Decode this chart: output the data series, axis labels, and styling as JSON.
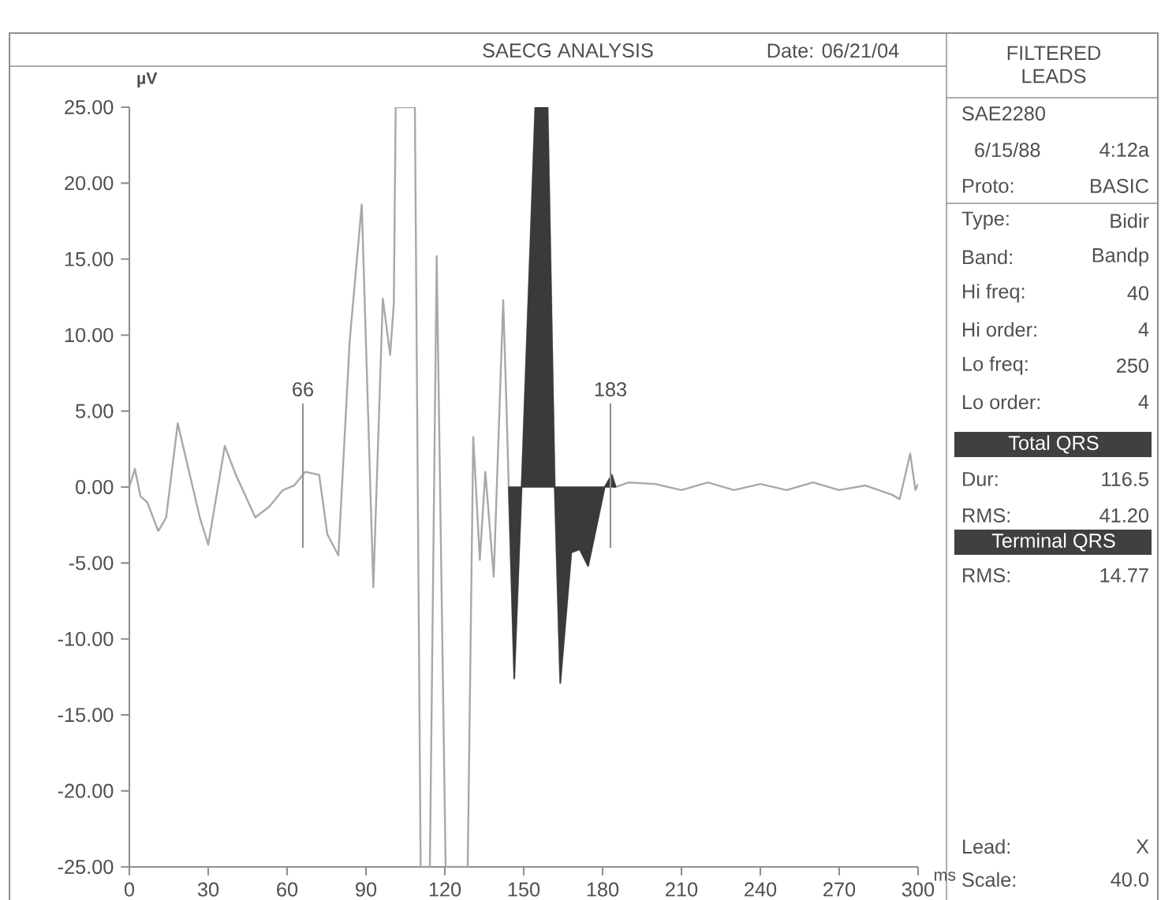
{
  "chart_data": {
    "type": "line",
    "title": "SAECG ANALYSIS",
    "subtitle": "Date: 06/21/04",
    "xlabel": "ms",
    "ylabel": "µV",
    "xlim": [
      0,
      300
    ],
    "xticks": [
      0,
      30,
      60,
      90,
      120,
      150,
      180,
      210,
      240,
      270,
      300
    ],
    "ylim": [
      -25,
      25
    ],
    "yticks": [
      {
        "value": -25,
        "label": "-25.00"
      },
      {
        "value": -20,
        "label": "-20.00"
      },
      {
        "value": -15,
        "label": "-15.00"
      },
      {
        "value": -10,
        "label": "-10.00"
      },
      {
        "value": -5,
        "label": "-5.00"
      },
      {
        "value": 0,
        "label": "0.00"
      },
      {
        "value": 5,
        "label": "5.00"
      },
      {
        "value": 10,
        "label": "10.00"
      },
      {
        "value": 15,
        "label": "15.00"
      },
      {
        "value": 20,
        "label": "20.00"
      },
      {
        "value": 25,
        "label": "25.00"
      }
    ],
    "series": [
      {
        "color": "#a8a8a8",
        "x": [
          0,
          2.1,
          4.2,
          6.8,
          11,
          14,
          18.4,
          21.5,
          26.8,
          30,
          36.3,
          40.5,
          47.9,
          53.2,
          58.4,
          62.7,
          66.9,
          72.2,
          75.3,
          79.5,
          83.8,
          88.4,
          92.8,
          96.4,
          99.2,
          100.6,
          101.3,
          108.6,
          110.8,
          114.3,
          116.9,
          120.3,
          128.7,
          130.8,
          133.3,
          135.4,
          138.6,
          142.2,
          143.5,
          144.3,
          146.4,
          149.2,
          154.4,
          159.1,
          161.8,
          163.9,
          168.1,
          171.3,
          174.5,
          180.8,
          183.5,
          185,
          190,
          200,
          210,
          220,
          230,
          240,
          250,
          260,
          270,
          280,
          290,
          293,
          297,
          299,
          300
        ],
        "values": [
          0,
          1.2,
          -0.6,
          -1.0,
          -2.9,
          -2.0,
          4.2,
          1.9,
          -2.0,
          -3.8,
          2.7,
          0.8,
          -2.0,
          -1.3,
          -0.2,
          0.1,
          1.0,
          0.8,
          -3.1,
          -4.5,
          9.6,
          18.6,
          -6.6,
          12.4,
          8.7,
          12.1,
          25,
          25,
          -25,
          -25,
          15.2,
          -25,
          -25,
          3.3,
          -4.8,
          1.0,
          -5.9,
          12.3,
          5.0,
          0,
          -12.6,
          0,
          25,
          25,
          0,
          -12.9,
          -4.3,
          -4.1,
          -5.2,
          0,
          0.8,
          0,
          0.3,
          0.2,
          -0.2,
          0.3,
          -0.2,
          0.2,
          -0.2,
          0.3,
          -0.2,
          0.1,
          -0.5,
          -0.8,
          2.2,
          -0.2,
          0.2
        ]
      },
      {
        "type": "area",
        "color": "#3a3a3a",
        "x": [
          144.3,
          146.4,
          149.2,
          154.4,
          159.1,
          161.8,
          163.9,
          168.1,
          171.3,
          174.5,
          180.8,
          183.5,
          185
        ],
        "values": [
          0,
          -12.6,
          0,
          25,
          25,
          0,
          -12.9,
          -4.3,
          -4.1,
          -5.2,
          0,
          0.8,
          0
        ]
      }
    ],
    "ref_lines": [
      {
        "axis": "x",
        "value": 66,
        "label": "66",
        "color": "#909090"
      },
      {
        "axis": "x",
        "value": 183,
        "label": "183",
        "color": "#909090"
      }
    ],
    "annotations": [
      "FILTERED LEADS",
      "SAE2280",
      "6/15/88",
      "4:12a",
      "Proto:",
      "BASIC",
      "Type:",
      "Bidir",
      "Band:",
      "Bandp",
      "Hi freq:",
      "40",
      "Hi order:",
      "4",
      "Lo freq:",
      "250",
      "Lo order:",
      "4",
      "Total QRS",
      "Dur:",
      "116.5",
      "RMS:",
      "41.20",
      "Terminal QRS",
      "RMS:",
      "14.77",
      "Lead:",
      "X",
      "Scale:",
      "40.0"
    ]
  }
}
